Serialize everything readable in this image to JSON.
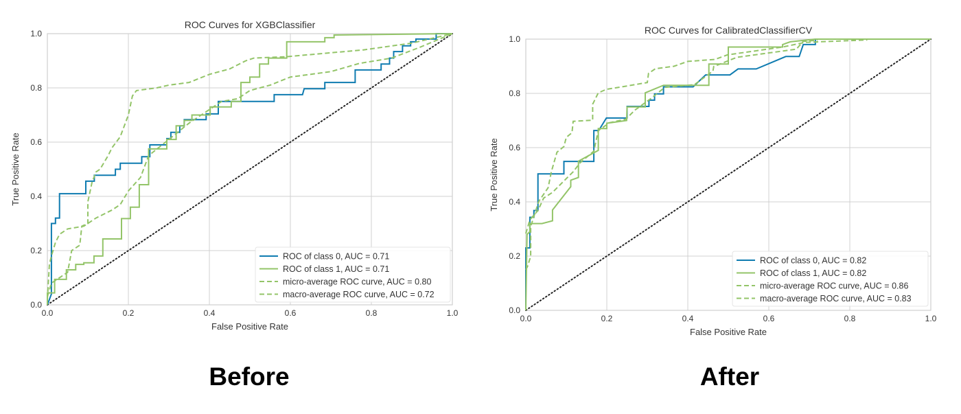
{
  "captions": [
    "Before",
    "After"
  ],
  "colors": {
    "class0": "#0E7BB0",
    "class1": "#93C468",
    "average": "#93C468",
    "chance": "#222222",
    "grid": "#D0D0D0"
  },
  "chart_data": [
    {
      "type": "line",
      "title": "ROC Curves for XGBClassifier",
      "xlabel": "False Positive Rate",
      "ylabel": "True Positive Rate",
      "xlim": [
        0,
        1
      ],
      "ylim": [
        0,
        1
      ],
      "xticks": [
        "0.0",
        "0.2",
        "0.4",
        "0.6",
        "0.8",
        "1.0"
      ],
      "yticks": [
        "0.0",
        "0.2",
        "0.4",
        "0.6",
        "0.8",
        "1.0"
      ],
      "grid": true,
      "legend_position": "lower-right",
      "series": [
        {
          "name": "ROC of class 0, AUC = 0.71",
          "style": "solid",
          "color": "#0E7BB0",
          "x": [
            0,
            0.005,
            0.01,
            0.01,
            0.02,
            0.02,
            0.03,
            0.03,
            0.095,
            0.095,
            0.116,
            0.116,
            0.168,
            0.168,
            0.18,
            0.18,
            0.233,
            0.233,
            0.253,
            0.253,
            0.295,
            0.295,
            0.305,
            0.305,
            0.327,
            0.327,
            0.338,
            0.338,
            0.392,
            0.392,
            0.422,
            0.422,
            0.56,
            0.56,
            0.63,
            0.634,
            0.685,
            0.685,
            0.76,
            0.76,
            0.824,
            0.824,
            0.845,
            0.845,
            0.855,
            0.855,
            0.877,
            0.877,
            0.897,
            0.897,
            0.91,
            0.91,
            0.96,
            0.96,
            1
          ],
          "y": [
            0,
            0.02,
            0.04,
            0.3,
            0.3,
            0.32,
            0.32,
            0.41,
            0.41,
            0.456,
            0.456,
            0.478,
            0.478,
            0.5,
            0.5,
            0.522,
            0.522,
            0.546,
            0.546,
            0.59,
            0.59,
            0.613,
            0.613,
            0.636,
            0.636,
            0.66,
            0.66,
            0.683,
            0.683,
            0.704,
            0.704,
            0.75,
            0.75,
            0.775,
            0.775,
            0.797,
            0.797,
            0.82,
            0.82,
            0.866,
            0.866,
            0.888,
            0.888,
            0.91,
            0.91,
            0.934,
            0.934,
            0.955,
            0.955,
            0.97,
            0.97,
            0.98,
            0.98,
            1.0,
            1.0
          ]
        },
        {
          "name": "ROC of class 1, AUC = 0.71",
          "style": "solid",
          "color": "#93C468",
          "x": [
            0,
            0,
            0.018,
            0.018,
            0.047,
            0.047,
            0.07,
            0.07,
            0.09,
            0.09,
            0.115,
            0.115,
            0.137,
            0.137,
            0.183,
            0.183,
            0.205,
            0.205,
            0.227,
            0.227,
            0.25,
            0.25,
            0.295,
            0.295,
            0.318,
            0.318,
            0.338,
            0.338,
            0.357,
            0.357,
            0.402,
            0.402,
            0.454,
            0.454,
            0.478,
            0.478,
            0.5,
            0.5,
            0.524,
            0.524,
            0.546,
            0.546,
            0.591,
            0.591,
            0.685,
            0.685,
            0.708,
            0.708,
            1
          ],
          "y": [
            0,
            0.044,
            0.044,
            0.094,
            0.094,
            0.129,
            0.129,
            0.149,
            0.149,
            0.155,
            0.155,
            0.18,
            0.18,
            0.243,
            0.243,
            0.318,
            0.318,
            0.36,
            0.36,
            0.443,
            0.443,
            0.575,
            0.575,
            0.61,
            0.61,
            0.66,
            0.66,
            0.68,
            0.68,
            0.7,
            0.7,
            0.73,
            0.73,
            0.75,
            0.75,
            0.82,
            0.82,
            0.84,
            0.84,
            0.888,
            0.888,
            0.91,
            0.91,
            0.97,
            0.97,
            0.985,
            0.985,
            0.995,
            1.0
          ]
        },
        {
          "name": "micro-average ROC curve, AUC = 0.80",
          "style": "dashed",
          "color": "#93C468",
          "x": [
            0,
            0.01,
            0.03,
            0.05,
            0.06,
            0.08,
            0.085,
            0.1,
            0.1,
            0.11,
            0.12,
            0.13,
            0.15,
            0.16,
            0.18,
            0.19,
            0.2,
            0.21,
            0.22,
            0.27,
            0.3,
            0.35,
            0.4,
            0.45,
            0.49,
            0.51,
            0.59,
            0.78,
            0.9,
            1
          ],
          "y": [
            0.03,
            0.08,
            0.1,
            0.12,
            0.2,
            0.22,
            0.29,
            0.3,
            0.38,
            0.45,
            0.49,
            0.5,
            0.55,
            0.58,
            0.62,
            0.66,
            0.7,
            0.77,
            0.79,
            0.8,
            0.81,
            0.82,
            0.85,
            0.87,
            0.9,
            0.91,
            0.915,
            0.94,
            0.965,
            1.0
          ]
        },
        {
          "name": "macro-average ROC curve, AUC = 0.72",
          "style": "dashed",
          "color": "#93C468",
          "x": [
            0,
            0.005,
            0.01,
            0.02,
            0.03,
            0.05,
            0.09,
            0.12,
            0.16,
            0.18,
            0.2,
            0.23,
            0.25,
            0.3,
            0.35,
            0.4,
            0.43,
            0.47,
            0.5,
            0.55,
            0.6,
            0.7,
            0.77,
            0.85,
            0.92,
            1
          ],
          "y": [
            0.02,
            0.15,
            0.18,
            0.23,
            0.26,
            0.28,
            0.29,
            0.32,
            0.35,
            0.37,
            0.42,
            0.47,
            0.55,
            0.61,
            0.67,
            0.72,
            0.75,
            0.76,
            0.79,
            0.81,
            0.84,
            0.86,
            0.89,
            0.91,
            0.95,
            1.0
          ]
        }
      ]
    },
    {
      "type": "line",
      "title": "ROC Curves for CalibratedClassifierCV",
      "xlabel": "False Positive Rate",
      "ylabel": "True Positive Rate",
      "xlim": [
        0,
        1
      ],
      "ylim": [
        0,
        1
      ],
      "xticks": [
        "0.0",
        "0.2",
        "0.4",
        "0.6",
        "0.8",
        "1.0"
      ],
      "yticks": [
        "0.0",
        "0.2",
        "0.4",
        "0.6",
        "0.8",
        "1.0"
      ],
      "grid": true,
      "legend_position": "lower-right",
      "series": [
        {
          "name": "ROC of class 0, AUC = 0.82",
          "style": "solid",
          "color": "#0E7BB0",
          "x": [
            0,
            0,
            0.01,
            0.01,
            0.02,
            0.02,
            0.03,
            0.03,
            0.094,
            0.094,
            0.168,
            0.168,
            0.18,
            0.199,
            0.25,
            0.25,
            0.304,
            0.304,
            0.318,
            0.318,
            0.34,
            0.34,
            0.413,
            0.444,
            0.504,
            0.524,
            0.569,
            0.642,
            0.675,
            0.685,
            0.715,
            0.715,
            1
          ],
          "y": [
            0,
            0.23,
            0.23,
            0.343,
            0.343,
            0.368,
            0.368,
            0.503,
            0.503,
            0.549,
            0.549,
            0.663,
            0.663,
            0.709,
            0.709,
            0.752,
            0.752,
            0.775,
            0.775,
            0.798,
            0.798,
            0.824,
            0.824,
            0.868,
            0.868,
            0.89,
            0.89,
            0.936,
            0.936,
            0.98,
            0.98,
            1.0,
            1.0
          ]
        },
        {
          "name": "ROC of class 1, AUC = 0.82",
          "style": "solid",
          "color": "#93C468",
          "x": [
            0,
            0.003,
            0.01,
            0.01,
            0.02,
            0.04,
            0.066,
            0.066,
            0.111,
            0.111,
            0.13,
            0.13,
            0.179,
            0.179,
            0.2,
            0.2,
            0.249,
            0.25,
            0.295,
            0.295,
            0.34,
            0.452,
            0.452,
            0.5,
            0.5,
            0.634,
            0.634,
            0.653,
            0.715,
            1
          ],
          "y": [
            0,
            0.28,
            0.29,
            0.32,
            0.32,
            0.32,
            0.33,
            0.37,
            0.456,
            0.48,
            0.49,
            0.55,
            0.59,
            0.67,
            0.67,
            0.69,
            0.7,
            0.75,
            0.75,
            0.802,
            0.83,
            0.83,
            0.908,
            0.908,
            0.971,
            0.971,
            0.98,
            0.99,
            1.0,
            1.0
          ]
        },
        {
          "name": "micro-average ROC curve, AUC = 0.86",
          "style": "dashed",
          "color": "#93C468",
          "x": [
            0,
            0.004,
            0.012,
            0.012,
            0.032,
            0.055,
            0.063,
            0.077,
            0.094,
            0.1,
            0.114,
            0.117,
            0.165,
            0.165,
            0.179,
            0.199,
            0.241,
            0.3,
            0.303,
            0.32,
            0.366,
            0.4,
            0.467,
            0.498,
            0.634,
            0.69,
            0.843
          ],
          "y": [
            0.15,
            0.161,
            0.199,
            0.309,
            0.402,
            0.452,
            0.511,
            0.583,
            0.604,
            0.638,
            0.655,
            0.697,
            0.701,
            0.76,
            0.802,
            0.815,
            0.825,
            0.84,
            0.874,
            0.891,
            0.9,
            0.918,
            0.925,
            0.942,
            0.971,
            0.988,
            0.997
          ]
        },
        {
          "name": "macro-average ROC curve, AUC = 0.83",
          "style": "dashed",
          "color": "#93C468",
          "x": [
            0,
            0.01,
            0.03,
            0.044,
            0.066,
            0.094,
            0.117,
            0.134,
            0.168,
            0.179,
            0.207,
            0.247,
            0.27,
            0.309,
            0.343,
            0.416,
            0.462,
            0.464,
            0.521,
            0.668,
            0.685,
            0.72
          ],
          "y": [
            0.283,
            0.334,
            0.368,
            0.414,
            0.435,
            0.477,
            0.511,
            0.544,
            0.587,
            0.663,
            0.692,
            0.705,
            0.739,
            0.781,
            0.822,
            0.832,
            0.882,
            0.899,
            0.933,
            0.963,
            0.992,
            0.996
          ]
        }
      ]
    }
  ]
}
